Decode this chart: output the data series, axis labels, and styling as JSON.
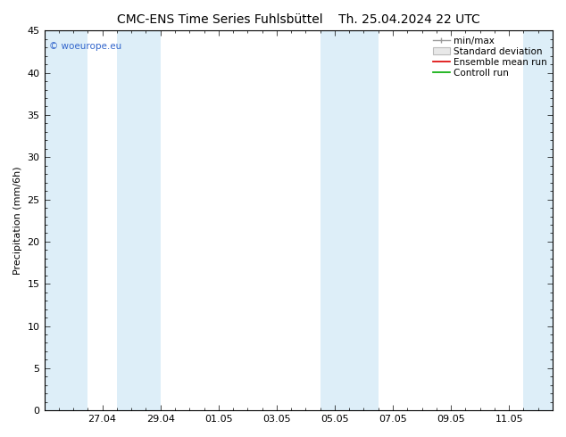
{
  "title": "CMC-ENS Time Series Fuhlsbüttel",
  "title_right": "Th. 25.04.2024 22 UTC",
  "ylabel": "Precipitation (mm/6h)",
  "ylim": [
    0,
    45
  ],
  "yticks": [
    0,
    5,
    10,
    15,
    20,
    25,
    30,
    35,
    40,
    45
  ],
  "xtick_labels": [
    "27.04",
    "29.04",
    "01.05",
    "03.05",
    "05.05",
    "07.05",
    "09.05",
    "11.05"
  ],
  "xtick_positions": [
    2,
    4,
    6,
    8,
    10,
    12,
    14,
    16
  ],
  "xlim": [
    0,
    17.5
  ],
  "shaded_bands": [
    {
      "start": 0.0,
      "end": 1.5,
      "color": "#ddeef8"
    },
    {
      "start": 2.5,
      "end": 4.0,
      "color": "#ddeef8"
    },
    {
      "start": 9.5,
      "end": 10.5,
      "color": "#ddeef8"
    },
    {
      "start": 10.5,
      "end": 11.5,
      "color": "#ddeef8"
    },
    {
      "start": 16.5,
      "end": 17.5,
      "color": "#ddeef8"
    }
  ],
  "legend_items": [
    {
      "label": "min/max",
      "color": "#999999",
      "type": "errorbar"
    },
    {
      "label": "Standard deviation",
      "color": "#bbbbbb",
      "type": "box"
    },
    {
      "label": "Ensemble mean run",
      "color": "#dd0000",
      "type": "line"
    },
    {
      "label": "Controll run",
      "color": "#00aa00",
      "type": "line"
    }
  ],
  "watermark": "© woeurope.eu",
  "watermark_color": "#3366cc",
  "bg_color": "#ffffff",
  "plot_bg_color": "#ffffff",
  "spine_color": "#888888",
  "title_fontsize": 10,
  "tick_fontsize": 8,
  "legend_fontsize": 7.5
}
